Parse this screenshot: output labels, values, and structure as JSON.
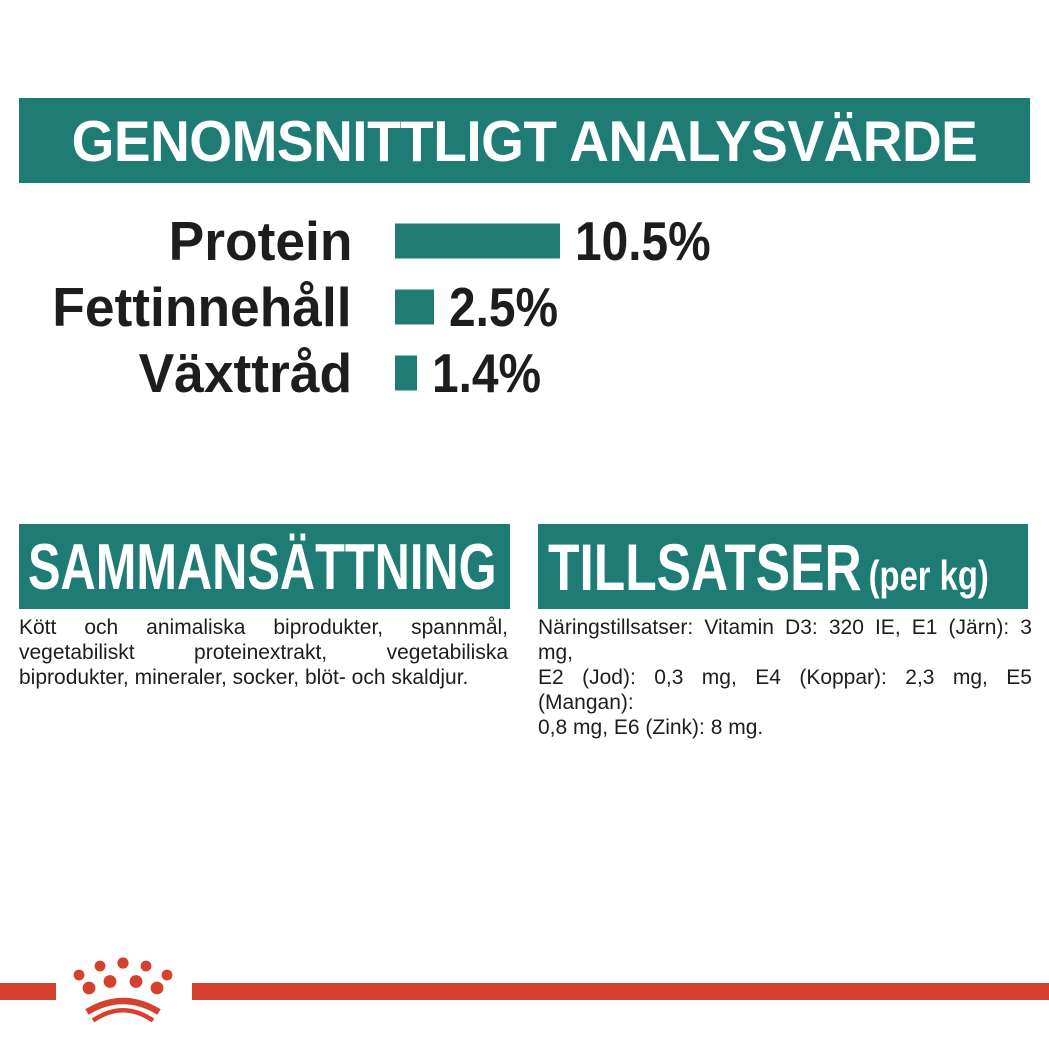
{
  "colors": {
    "teal": "#1e7c74",
    "red": "#d6402e",
    "ink": "#1d1d1b",
    "background": "#ffffff",
    "banner_text": "#ffffff"
  },
  "chart_data": {
    "type": "bar",
    "orientation": "horizontal",
    "title": "GENOMSNITTLIGT ANALYSVÄRDE",
    "categories": [
      "Protein",
      "Fettinnehåll",
      "Växttråd"
    ],
    "values": [
      10.5,
      2.5,
      1.4
    ],
    "value_labels": [
      "10.5%",
      "2.5%",
      "1.4%"
    ],
    "unit": "%",
    "xlim": [
      0,
      10.5
    ],
    "grid": false,
    "legend": false,
    "bar_color": "#1e7c74",
    "label_position": "left",
    "value_position": "right-of-bar"
  },
  "composition": {
    "title": "SAMMANSÄTTNING",
    "lines": [
      "Kött och animaliska biprodukter, spannmål,",
      "vegetabiliskt proteinextrakt, vegetabiliska",
      "biprodukter, mineraler, socker, blöt- och skaldjur."
    ]
  },
  "additives": {
    "title": "TILLSATSER",
    "title_suffix": "(per kg)",
    "lines": [
      "Näringstillsatser: Vitamin D3: 320 IE, E1 (Järn): 3 mg,",
      "E2 (Jod): 0,3 mg, E4 (Koppar): 2,3 mg, E5 (Mangan):",
      "0,8 mg, E6 (Zink): 8 mg."
    ]
  },
  "footer": {
    "logo_icon": "royal-canin-crown-logo"
  }
}
